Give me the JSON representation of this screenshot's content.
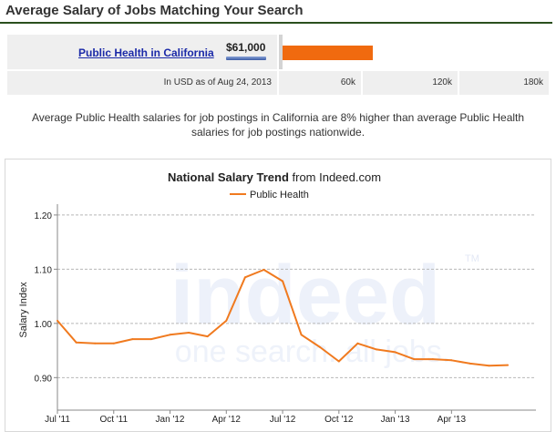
{
  "header": {
    "title": "Average Salary of Jobs Matching Your Search"
  },
  "salary_box": {
    "job_link": "Public Health in California",
    "salary": "$61,000",
    "salary_value": 61000,
    "currency_note": "In USD as of Aug 24, 2013",
    "scale_max": 180000,
    "scale_ticks": [
      "60k",
      "120k",
      "180k"
    ],
    "bar_color": "#f06a0f"
  },
  "summary": {
    "line1": "Average Public Health salaries for job postings in California are 8% higher than average Public Health",
    "line2": "salaries for job postings nationwide."
  },
  "chart_data": {
    "type": "line",
    "title_bold": "National Salary Trend",
    "title_rest": " from Indeed.com",
    "ylabel": "Salary Index",
    "xlabel": "",
    "ylim": [
      0.84,
      1.22
    ],
    "yticks": [
      0.9,
      1.0,
      1.1,
      1.2
    ],
    "ytick_labels": [
      "0.90",
      "1.00",
      "1.10",
      "1.20"
    ],
    "xtick_labels": [
      "Jul '11",
      "Oct '11",
      "Jan '12",
      "Apr '12",
      "Jul '12",
      "Oct '12",
      "Jan '13",
      "Apr '13"
    ],
    "xtick_month_index": [
      0,
      3,
      6,
      9,
      12,
      15,
      18,
      21
    ],
    "x_month_range": [
      0,
      25.5
    ],
    "legend_position": "top-center",
    "grid": true,
    "watermark": {
      "main": "indeed",
      "tagline": "one search. all jobs.",
      "tm": "TM"
    },
    "series": [
      {
        "name": "Public Health",
        "color": "#f07a1f",
        "x": [
          0,
          1,
          2,
          3,
          4,
          5,
          6,
          7,
          8,
          9,
          10,
          11,
          12,
          13,
          14,
          15,
          16,
          17,
          18,
          19,
          20,
          21,
          22,
          23,
          24
        ],
        "values": [
          1.005,
          0.965,
          0.963,
          0.963,
          0.971,
          0.971,
          0.979,
          0.983,
          0.976,
          1.005,
          1.085,
          1.099,
          1.078,
          0.979,
          0.956,
          0.93,
          0.963,
          0.952,
          0.947,
          0.934,
          0.934,
          0.932,
          0.926,
          0.922,
          0.923
        ]
      }
    ]
  }
}
